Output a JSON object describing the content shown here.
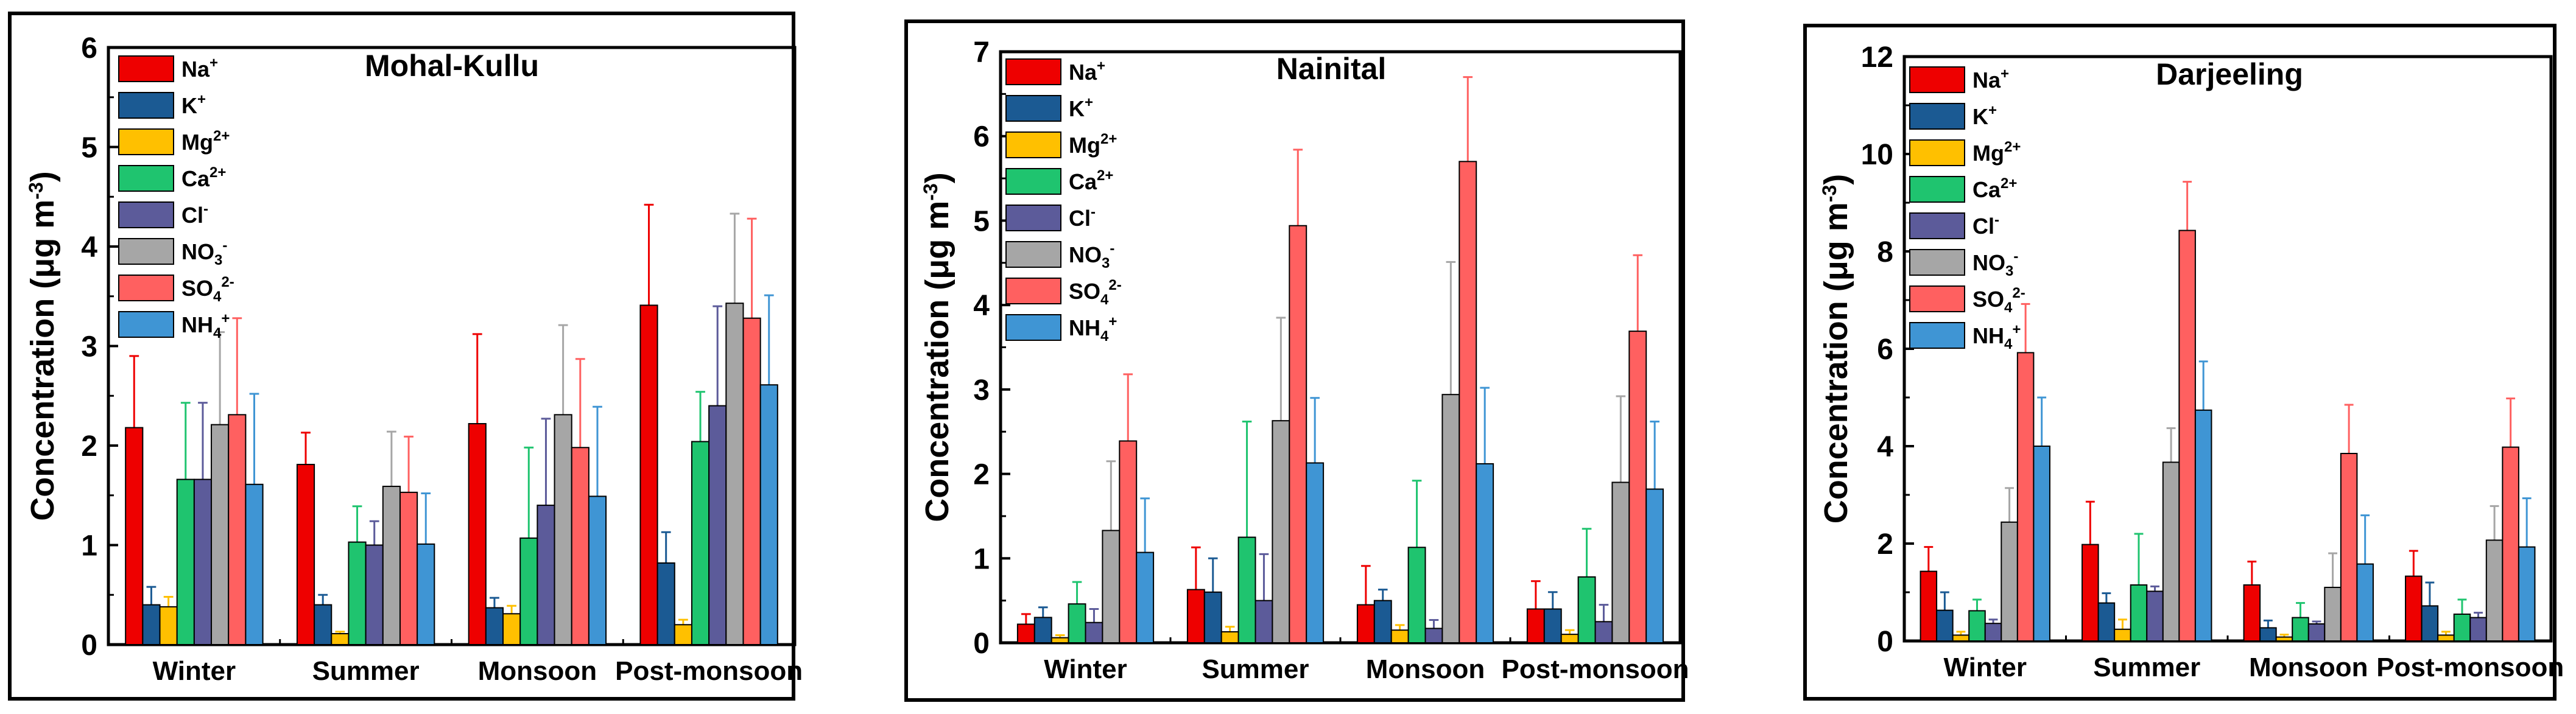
{
  "chart_data": [
    {
      "type": "bar",
      "title": "Mohal-Kullu",
      "ylabel": "Concentration (μg m",
      "ylabel_sup": "-3",
      "ylabel_end": ")",
      "ylim": [
        0,
        6
      ],
      "yticks": [
        "0",
        "1",
        "2",
        "3",
        "4",
        "5",
        "6"
      ],
      "categories": [
        "Winter",
        "Summer",
        "Monsoon",
        "Post-monsoon"
      ],
      "series": [
        {
          "name": "Na",
          "sup": "+",
          "sub": "",
          "color": "#ee0000",
          "values": [
            2.18,
            1.81,
            2.22,
            3.41
          ],
          "errors": [
            0.72,
            0.32,
            0.9,
            1.01
          ]
        },
        {
          "name": "K",
          "sup": "+",
          "sub": "",
          "color": "#1b5a93",
          "values": [
            0.4,
            0.4,
            0.37,
            0.82
          ],
          "errors": [
            0.18,
            0.1,
            0.1,
            0.31
          ]
        },
        {
          "name": "Mg",
          "sup": "2+",
          "sub": "",
          "color": "#ffc000",
          "values": [
            0.38,
            0.11,
            0.31,
            0.2
          ],
          "errors": [
            0.1,
            0.02,
            0.08,
            0.05
          ]
        },
        {
          "name": "Ca",
          "sup": "2+",
          "sub": "",
          "color": "#1fc46f",
          "values": [
            1.66,
            1.03,
            1.07,
            2.04
          ],
          "errors": [
            0.77,
            0.36,
            0.91,
            0.5
          ]
        },
        {
          "name": "Cl",
          "sup": "-",
          "sub": "",
          "color": "#5c5b9a",
          "values": [
            1.66,
            1.0,
            1.4,
            2.4
          ],
          "errors": [
            0.77,
            0.24,
            0.87,
            1.0
          ]
        },
        {
          "name": "NO",
          "sup": "-",
          "sub": "3",
          "color": "#a6a6a6",
          "values": [
            2.21,
            1.59,
            2.31,
            3.43
          ],
          "errors": [
            0.93,
            0.55,
            0.9,
            0.9
          ]
        },
        {
          "name": "SO",
          "sup": "2-",
          "sub": "4",
          "color": "#ff6060",
          "values": [
            2.31,
            1.53,
            1.98,
            3.28
          ],
          "errors": [
            0.97,
            0.56,
            0.89,
            1.0
          ]
        },
        {
          "name": "NH",
          "sup": "+",
          "sub": "4",
          "color": "#3f95d4",
          "values": [
            1.61,
            1.01,
            1.49,
            2.61
          ],
          "errors": [
            0.91,
            0.51,
            0.9,
            0.9
          ]
        }
      ]
    },
    {
      "type": "bar",
      "title": "Nainital",
      "ylabel": "Concentration (μg m",
      "ylabel_sup": "-3",
      "ylabel_end": ")",
      "ylim": [
        0,
        7
      ],
      "yticks": [
        "0",
        "1",
        "2",
        "3",
        "4",
        "5",
        "6",
        "7"
      ],
      "categories": [
        "Winter",
        "Summer",
        "Monsoon",
        "Post-monsoon"
      ],
      "series": [
        {
          "name": "Na",
          "sup": "+",
          "sub": "",
          "color": "#ee0000",
          "values": [
            0.22,
            0.63,
            0.45,
            0.4
          ],
          "errors": [
            0.12,
            0.5,
            0.46,
            0.33
          ]
        },
        {
          "name": "K",
          "sup": "+",
          "sub": "",
          "color": "#1b5a93",
          "values": [
            0.3,
            0.6,
            0.5,
            0.4
          ],
          "errors": [
            0.12,
            0.4,
            0.13,
            0.2
          ]
        },
        {
          "name": "Mg",
          "sup": "2+",
          "sub": "",
          "color": "#ffc000",
          "values": [
            0.06,
            0.13,
            0.15,
            0.1
          ],
          "errors": [
            0.03,
            0.06,
            0.06,
            0.05
          ]
        },
        {
          "name": "Ca",
          "sup": "2+",
          "sub": "",
          "color": "#1fc46f",
          "values": [
            0.46,
            1.25,
            1.13,
            0.78
          ],
          "errors": [
            0.26,
            1.37,
            0.79,
            0.57
          ]
        },
        {
          "name": "Cl",
          "sup": "-",
          "sub": "",
          "color": "#5c5b9a",
          "values": [
            0.24,
            0.5,
            0.17,
            0.25
          ],
          "errors": [
            0.16,
            0.55,
            0.1,
            0.2
          ]
        },
        {
          "name": "NO",
          "sup": "-",
          "sub": "3",
          "color": "#a6a6a6",
          "values": [
            1.33,
            2.63,
            2.94,
            1.9
          ],
          "errors": [
            0.82,
            1.22,
            1.57,
            1.02
          ]
        },
        {
          "name": "SO",
          "sup": "2-",
          "sub": "4",
          "color": "#ff6060",
          "values": [
            2.39,
            4.94,
            5.7,
            3.69
          ],
          "errors": [
            0.79,
            0.9,
            1.0,
            0.9
          ]
        },
        {
          "name": "NH",
          "sup": "+",
          "sub": "4",
          "color": "#3f95d4",
          "values": [
            1.07,
            2.13,
            2.12,
            1.82
          ],
          "errors": [
            0.64,
            0.77,
            0.9,
            0.8
          ]
        }
      ]
    },
    {
      "type": "bar",
      "title": "Darjeeling",
      "ylabel": "Concentration (μg m",
      "ylabel_sup": "-3",
      "ylabel_end": ")",
      "ylim": [
        0,
        12
      ],
      "yticks": [
        "0",
        "2",
        "4",
        "6",
        "8",
        "10",
        "12"
      ],
      "categories": [
        "Winter",
        "Summer",
        "Monsoon",
        "Post-monsoon"
      ],
      "series": [
        {
          "name": "Na",
          "sup": "+",
          "sub": "",
          "color": "#ee0000",
          "values": [
            1.43,
            1.98,
            1.15,
            1.33
          ],
          "errors": [
            0.5,
            0.88,
            0.48,
            0.52
          ]
        },
        {
          "name": "K",
          "sup": "+",
          "sub": "",
          "color": "#1b5a93",
          "values": [
            0.63,
            0.78,
            0.27,
            0.72
          ],
          "errors": [
            0.37,
            0.2,
            0.15,
            0.48
          ]
        },
        {
          "name": "Mg",
          "sup": "2+",
          "sub": "",
          "color": "#ffc000",
          "values": [
            0.12,
            0.24,
            0.08,
            0.12
          ],
          "errors": [
            0.07,
            0.2,
            0.05,
            0.07
          ]
        },
        {
          "name": "Ca",
          "sup": "2+",
          "sub": "",
          "color": "#1fc46f",
          "values": [
            0.62,
            1.15,
            0.48,
            0.55
          ],
          "errors": [
            0.23,
            1.05,
            0.3,
            0.3
          ]
        },
        {
          "name": "Cl",
          "sup": "-",
          "sub": "",
          "color": "#5c5b9a",
          "values": [
            0.36,
            1.02,
            0.35,
            0.48
          ],
          "errors": [
            0.08,
            0.1,
            0.05,
            0.1
          ]
        },
        {
          "name": "NO",
          "sup": "-",
          "sub": "3",
          "color": "#a6a6a6",
          "values": [
            2.44,
            3.67,
            1.1,
            2.07
          ],
          "errors": [
            0.7,
            0.7,
            0.7,
            0.7
          ]
        },
        {
          "name": "SO",
          "sup": "2-",
          "sub": "4",
          "color": "#ff6060",
          "values": [
            5.92,
            8.43,
            3.85,
            3.98
          ],
          "errors": [
            1.0,
            1.0,
            1.0,
            1.0
          ]
        },
        {
          "name": "NH",
          "sup": "+",
          "sub": "4",
          "color": "#3f95d4",
          "values": [
            4.0,
            4.74,
            1.58,
            1.93
          ],
          "errors": [
            1.0,
            1.0,
            1.0,
            1.0
          ]
        }
      ]
    }
  ]
}
